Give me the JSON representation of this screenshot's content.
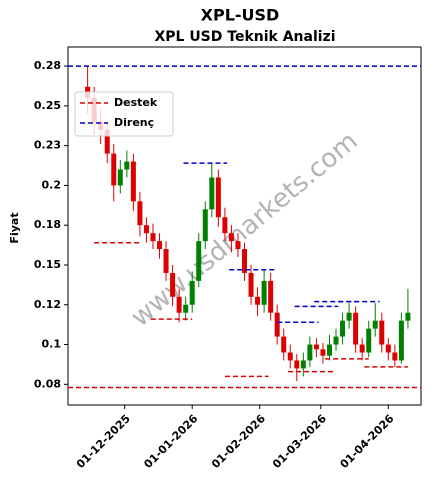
{
  "chart_data": {
    "type": "candlestick",
    "title": "XPL-USD",
    "subtitle": "XPL USD Teknik Analizi",
    "ylabel": "Fiyat",
    "watermark": "www.usdmarkets.com",
    "x": [
      "2025-11-14",
      "2025-11-17",
      "2025-11-20",
      "2025-11-23",
      "2025-11-26",
      "2025-11-29",
      "2025-12-02",
      "2025-12-05",
      "2025-12-08",
      "2025-12-11",
      "2025-12-14",
      "2025-12-17",
      "2025-12-20",
      "2025-12-23",
      "2025-12-26",
      "2025-12-29",
      "2026-01-01",
      "2026-01-04",
      "2026-01-07",
      "2026-01-10",
      "2026-01-13",
      "2026-01-16",
      "2026-01-19",
      "2026-01-22",
      "2026-01-25",
      "2026-01-28",
      "2026-01-31",
      "2026-02-03",
      "2026-02-06",
      "2026-02-09",
      "2026-02-12",
      "2026-02-15",
      "2026-02-18",
      "2026-02-21",
      "2026-02-24",
      "2026-02-27",
      "2026-03-02",
      "2026-03-05",
      "2026-03-08",
      "2026-03-11",
      "2026-03-14",
      "2026-03-17",
      "2026-03-20",
      "2026-03-23",
      "2026-03-26",
      "2026-03-29",
      "2026-04-01",
      "2026-04-04",
      "2026-04-07",
      "2026-04-10"
    ],
    "open": [
      0.262,
      0.255,
      0.24,
      0.235,
      0.22,
      0.2,
      0.21,
      0.215,
      0.19,
      0.175,
      0.17,
      0.165,
      0.16,
      0.145,
      0.13,
      0.12,
      0.125,
      0.14,
      0.165,
      0.185,
      0.205,
      0.18,
      0.17,
      0.165,
      0.16,
      0.145,
      0.13,
      0.125,
      0.14,
      0.12,
      0.105,
      0.095,
      0.09,
      0.085,
      0.09,
      0.1,
      0.097,
      0.093,
      0.1,
      0.105,
      0.115,
      0.12,
      0.1,
      0.095,
      0.11,
      0.115,
      0.1,
      0.095,
      0.09,
      0.115
    ],
    "high": [
      0.275,
      0.262,
      0.248,
      0.24,
      0.226,
      0.216,
      0.222,
      0.22,
      0.196,
      0.18,
      0.176,
      0.17,
      0.165,
      0.15,
      0.135,
      0.13,
      0.146,
      0.17,
      0.19,
      0.214,
      0.21,
      0.186,
      0.175,
      0.17,
      0.164,
      0.15,
      0.136,
      0.147,
      0.145,
      0.125,
      0.11,
      0.1,
      0.094,
      0.095,
      0.105,
      0.104,
      0.101,
      0.106,
      0.11,
      0.12,
      0.126,
      0.124,
      0.104,
      0.115,
      0.126,
      0.12,
      0.104,
      0.1,
      0.12,
      0.135
    ],
    "low": [
      0.245,
      0.232,
      0.226,
      0.214,
      0.19,
      0.195,
      0.205,
      0.184,
      0.168,
      0.164,
      0.16,
      0.154,
      0.14,
      0.124,
      0.114,
      0.115,
      0.12,
      0.136,
      0.16,
      0.18,
      0.174,
      0.165,
      0.158,
      0.155,
      0.14,
      0.125,
      0.118,
      0.12,
      0.115,
      0.1,
      0.09,
      0.085,
      0.077,
      0.08,
      0.086,
      0.092,
      0.088,
      0.09,
      0.096,
      0.1,
      0.11,
      0.095,
      0.09,
      0.092,
      0.105,
      0.095,
      0.09,
      0.086,
      0.088,
      0.11
    ],
    "close": [
      0.255,
      0.24,
      0.235,
      0.22,
      0.2,
      0.21,
      0.215,
      0.19,
      0.175,
      0.17,
      0.165,
      0.16,
      0.145,
      0.13,
      0.12,
      0.125,
      0.14,
      0.165,
      0.185,
      0.205,
      0.18,
      0.17,
      0.165,
      0.16,
      0.145,
      0.13,
      0.125,
      0.14,
      0.12,
      0.105,
      0.095,
      0.09,
      0.085,
      0.09,
      0.1,
      0.097,
      0.093,
      0.1,
      0.105,
      0.115,
      0.12,
      0.1,
      0.095,
      0.11,
      0.115,
      0.1,
      0.095,
      0.09,
      0.115,
      0.12
    ],
    "up_color": "#008000",
    "down_color": "#dd0000",
    "support": {
      "name": "Destek",
      "color": "#dd0000",
      "main": 0.073,
      "levels": [
        {
          "value": 0.164,
          "start": "2025-11-17",
          "end": "2025-12-08"
        },
        {
          "value": 0.116,
          "start": "2025-12-13",
          "end": "2026-01-01"
        },
        {
          "value": 0.08,
          "start": "2026-01-16",
          "end": "2026-02-05"
        },
        {
          "value": 0.083,
          "start": "2026-02-14",
          "end": "2026-03-08"
        },
        {
          "value": 0.091,
          "start": "2026-03-03",
          "end": "2026-03-23"
        },
        {
          "value": 0.086,
          "start": "2026-03-21",
          "end": "2026-04-10"
        }
      ]
    },
    "resistance": {
      "name": "Direnç",
      "color": "#0000cc",
      "main": 0.275,
      "levels": [
        {
          "value": 0.214,
          "start": "2025-12-28",
          "end": "2026-01-17"
        },
        {
          "value": 0.147,
          "start": "2026-01-18",
          "end": "2026-02-08"
        },
        {
          "value": 0.114,
          "start": "2026-02-09",
          "end": "2026-02-28"
        },
        {
          "value": 0.124,
          "start": "2026-02-17",
          "end": "2026-03-09"
        },
        {
          "value": 0.127,
          "start": "2026-02-26",
          "end": "2026-03-18"
        },
        {
          "value": 0.127,
          "start": "2026-03-09",
          "end": "2026-03-28"
        }
      ]
    },
    "xlim": [
      "2025-11-05",
      "2026-04-16"
    ],
    "xticks": [
      {
        "value": "2025-12-01",
        "label": "01-12-2025"
      },
      {
        "value": "2026-01-01",
        "label": "01-01-2026"
      },
      {
        "value": "2026-02-01",
        "label": "01-02-2026"
      },
      {
        "value": "2026-03-01",
        "label": "01-03-2026"
      },
      {
        "value": "2026-04-01",
        "label": "01-04-2026"
      }
    ],
    "ylim": [
      0.062,
      0.287
    ],
    "yticks": [
      {
        "value": 0.075,
        "label": "0.08"
      },
      {
        "value": 0.1,
        "label": "0.1"
      },
      {
        "value": 0.125,
        "label": "0.12"
      },
      {
        "value": 0.15,
        "label": "0.15"
      },
      {
        "value": 0.175,
        "label": "0.18"
      },
      {
        "value": 0.2,
        "label": "0.2"
      },
      {
        "value": 0.225,
        "label": "0.23"
      },
      {
        "value": 0.25,
        "label": "0.25"
      },
      {
        "value": 0.275,
        "label": "0.28"
      }
    ],
    "legend": "upper left"
  }
}
